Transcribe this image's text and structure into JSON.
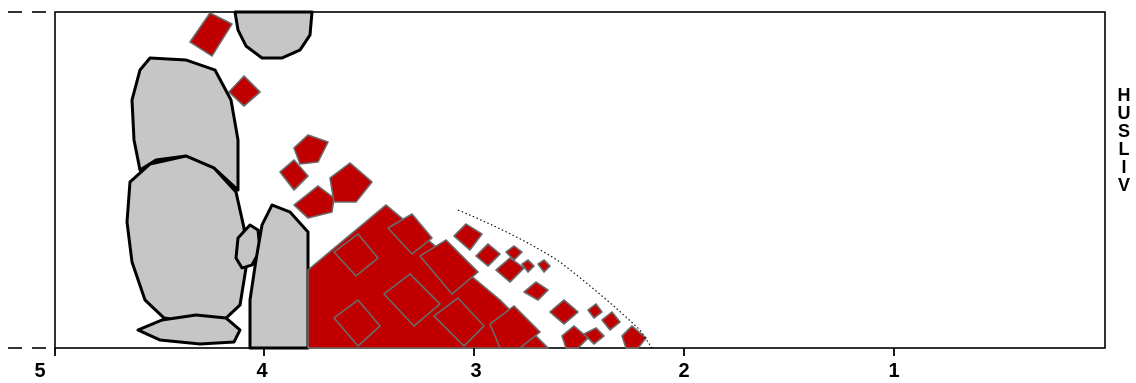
{
  "scale": {
    "labels": [
      "5",
      "4",
      "3",
      "2",
      "1"
    ]
  },
  "side_label": {
    "letters": [
      "H",
      "U",
      "S",
      "L",
      "I",
      "V"
    ]
  },
  "colors": {
    "brick": "#c00000",
    "stone": "#c6c6c6",
    "outline": "#000000"
  }
}
